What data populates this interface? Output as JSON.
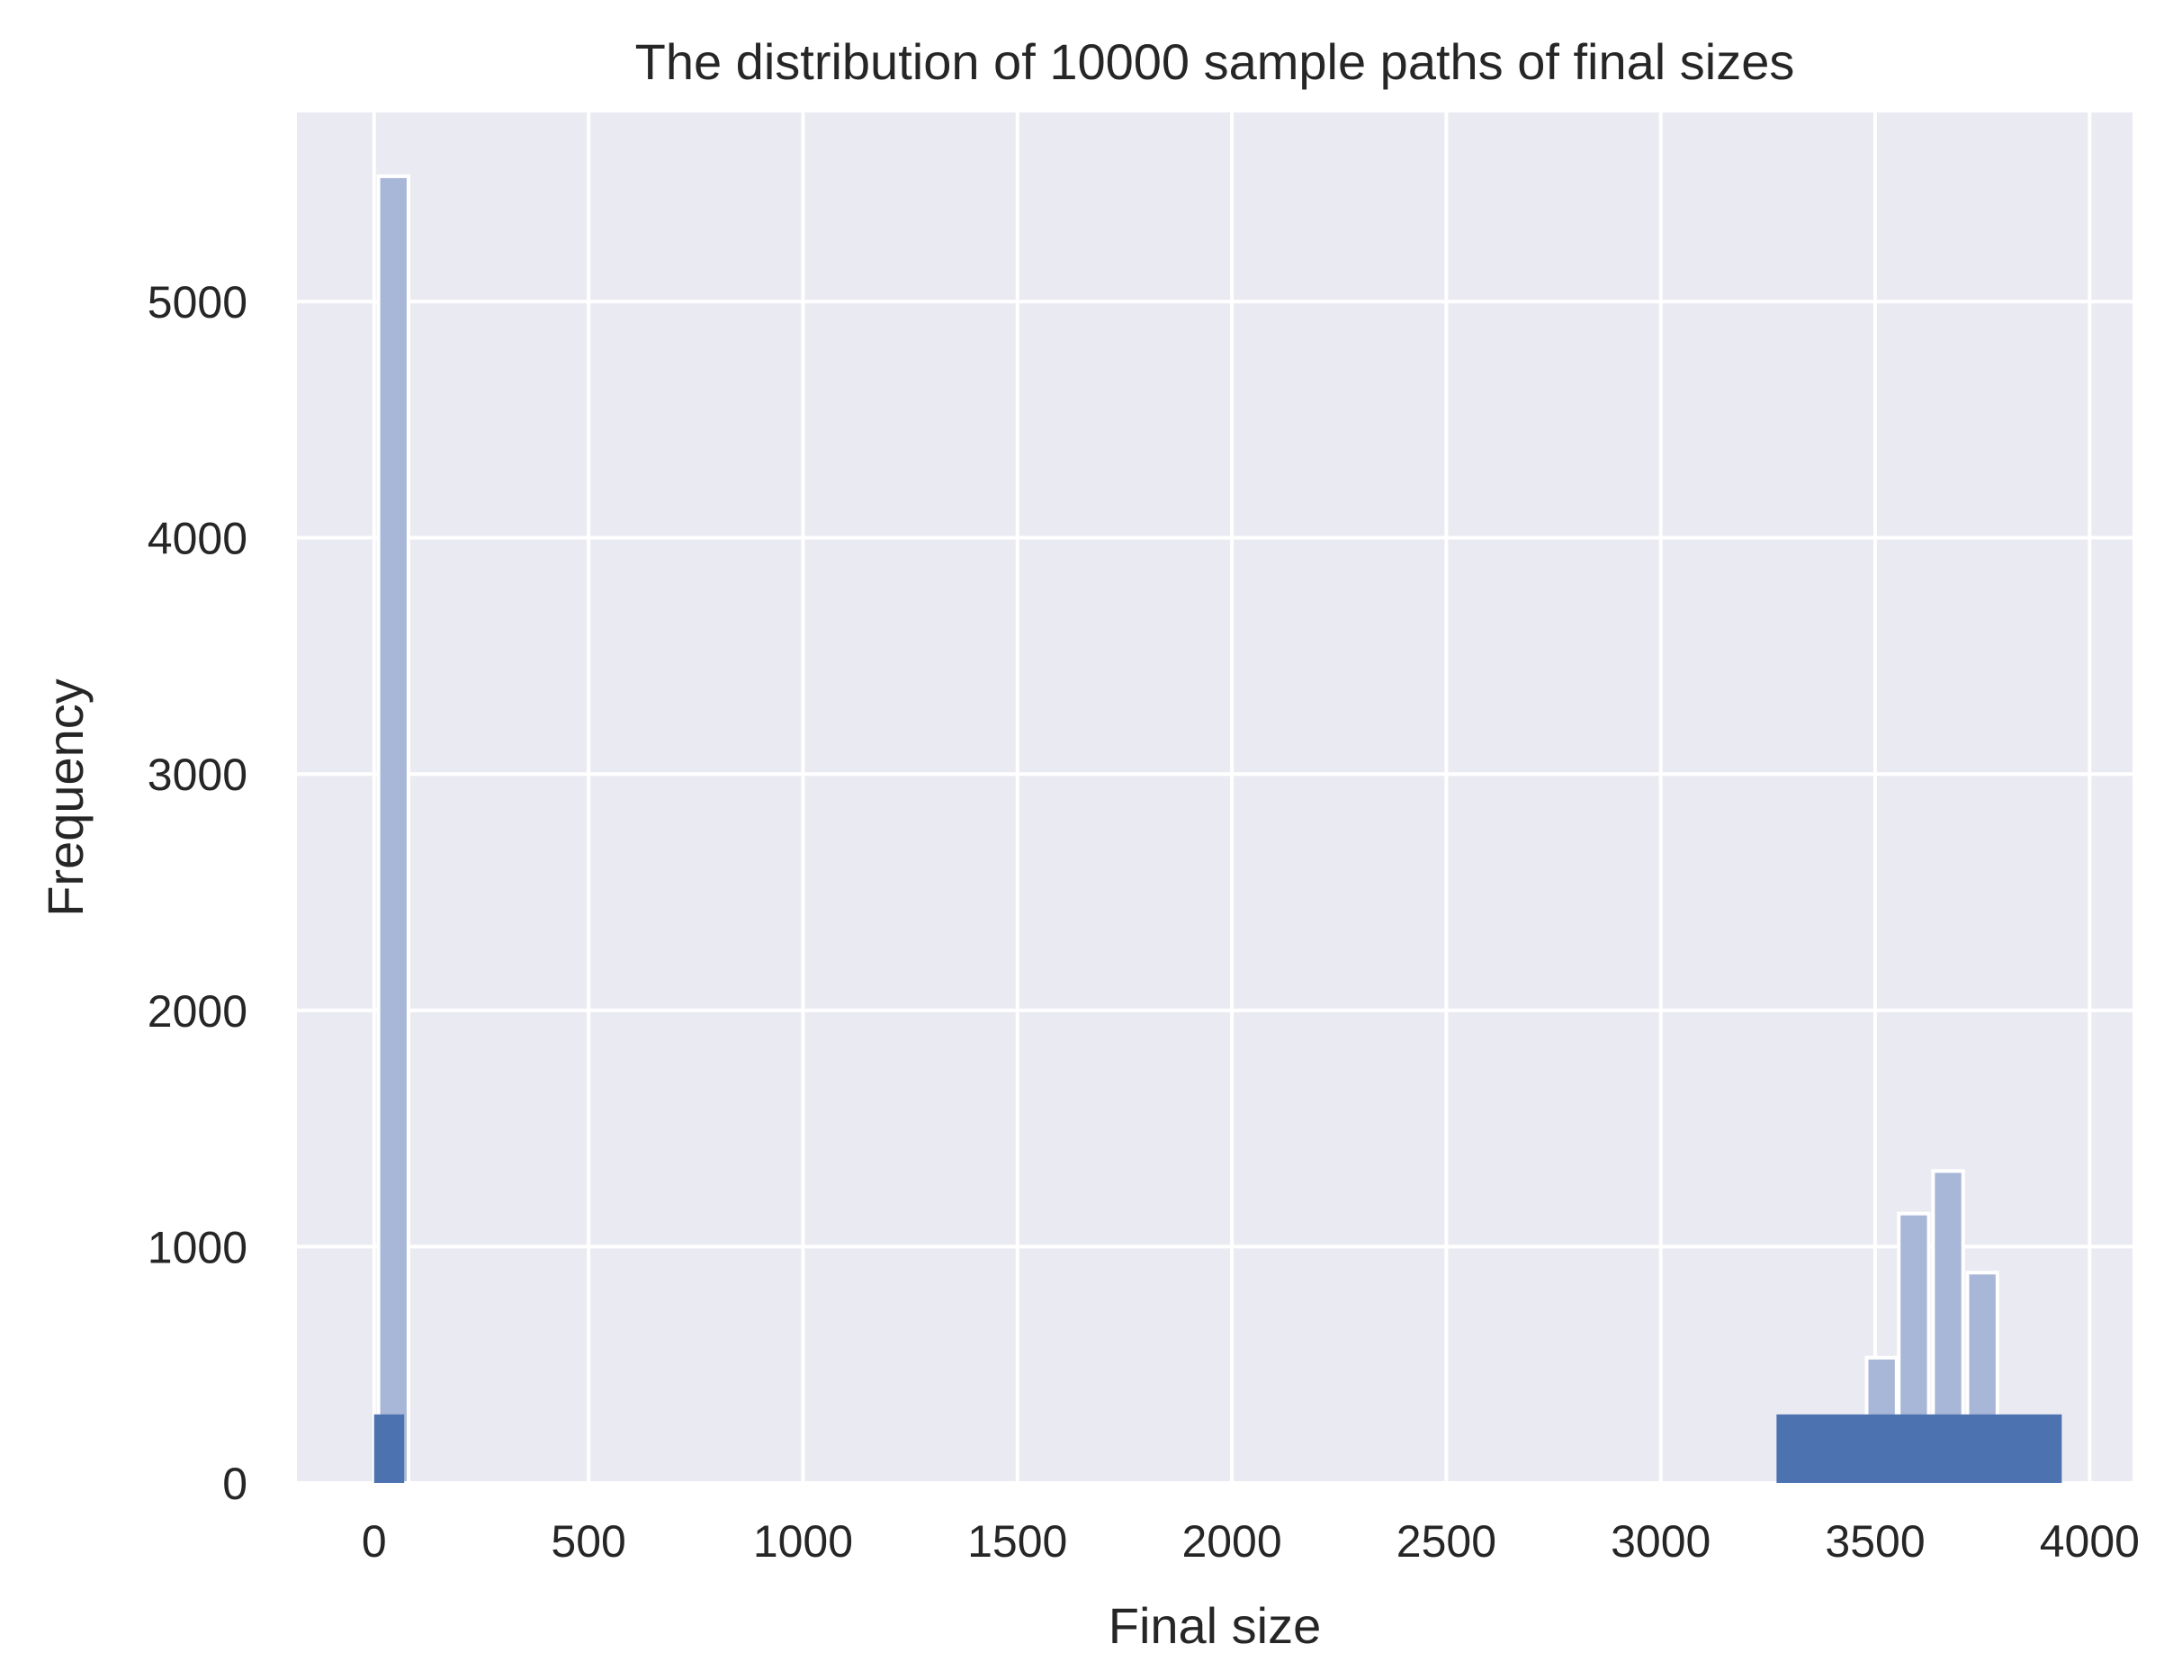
{
  "colors": {
    "plot_bg": "#EAEAF2",
    "grid": "#FFFFFF",
    "hist_fill": "#A8B7D8",
    "rug_fill": "#4C72B0",
    "edge": "#FFFFFF",
    "text": "#262626"
  },
  "chart_data": {
    "type": "bar",
    "title": "The distribution of 10000 sample paths of final sizes",
    "xlabel": "Final size",
    "ylabel": "Frequency",
    "xlim": [
      -180,
      4100
    ],
    "ylim": [
      0,
      5800
    ],
    "xticks": [
      0,
      500,
      1000,
      1500,
      2000,
      2500,
      3000,
      3500,
      4000
    ],
    "yticks": [
      0,
      1000,
      2000,
      3000,
      4000,
      5000
    ],
    "grid": true,
    "series": [
      {
        "kind": "histogram",
        "bins": [
          {
            "x0": 10,
            "x1": 80,
            "value": 5530
          },
          {
            "x0": 3480,
            "x1": 3550,
            "value": 530
          },
          {
            "x0": 3555,
            "x1": 3625,
            "value": 1140
          },
          {
            "x0": 3635,
            "x1": 3705,
            "value": 1320
          },
          {
            "x0": 3715,
            "x1": 3785,
            "value": 890
          },
          {
            "x0": 3790,
            "x1": 3860,
            "value": 270
          },
          {
            "x0": 3860,
            "x1": 3930,
            "value": 30
          }
        ]
      },
      {
        "kind": "rug",
        "extent": 290,
        "ranges": [
          {
            "x0": 0,
            "x1": 70
          },
          {
            "x0": 3270,
            "x1": 3935
          }
        ]
      }
    ]
  }
}
